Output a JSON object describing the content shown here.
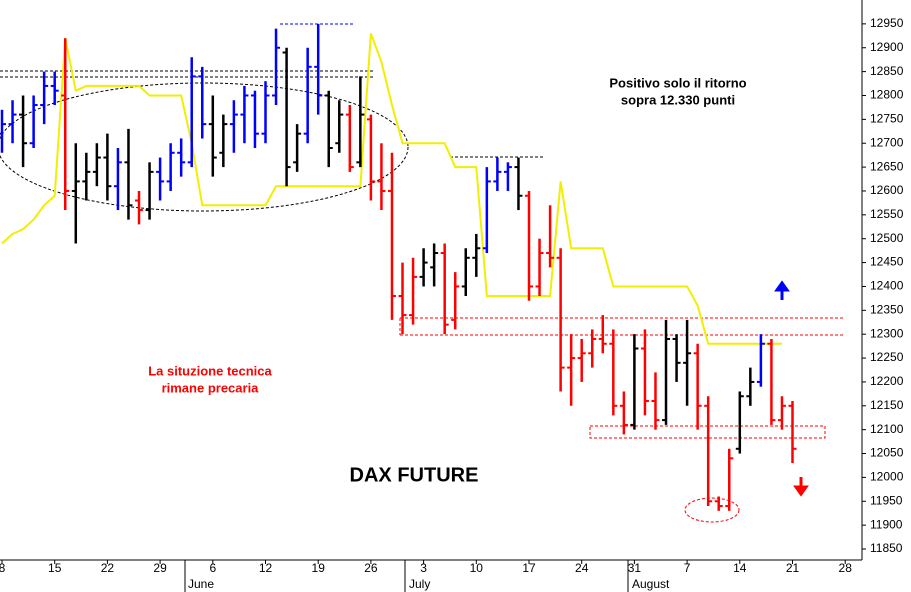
{
  "chart_data": {
    "type": "ohlc",
    "title": "DAX FUTURE",
    "annotations": [
      "Positivo solo il ritorno",
      "sopra 12.330 punti",
      "La situzione tecnica",
      "rimane precaria"
    ],
    "months": [
      "June",
      "July",
      "August"
    ],
    "categories": [
      "8",
      null,
      null,
      null,
      null,
      "15",
      null,
      null,
      null,
      null,
      "22",
      null,
      null,
      null,
      null,
      "29",
      null,
      null,
      null,
      null,
      "6",
      null,
      null,
      null,
      null,
      "12",
      null,
      null,
      null,
      null,
      "19",
      null,
      null,
      null,
      null,
      "26",
      null,
      null,
      null,
      null,
      "3",
      null,
      null,
      null,
      null,
      "10",
      null,
      null,
      null,
      null,
      "17",
      null,
      null,
      null,
      null,
      "24",
      null,
      null,
      null,
      null,
      "31",
      null,
      null,
      null,
      null,
      "7",
      null,
      null,
      null,
      null,
      "14",
      null,
      null,
      null,
      null,
      "21",
      null,
      null,
      null,
      null,
      "28",
      null
    ],
    "open": [
      12720,
      12740,
      12760,
      12700,
      12780,
      12820,
      12800,
      12600,
      12620,
      12640,
      12670,
      12610,
      12660,
      12580,
      12560,
      12640,
      12620,
      12680,
      12660,
      12840,
      12740,
      12680,
      12740,
      12760,
      12800,
      12720,
      12800,
      12890,
      12660,
      12720,
      12860,
      12800,
      12700,
      12760,
      12660,
      12750,
      12620,
      12600,
      12380,
      12340,
      12420,
      12440,
      12470,
      12330,
      12400,
      12460,
      12480,
      12620,
      12640,
      12650,
      12590,
      12400,
      12470,
      12460,
      12230,
      12250,
      12260,
      12290,
      12280,
      12150,
      12110,
      12270,
      12160,
      12120,
      12290,
      12240,
      12260,
      12150,
      11950,
      11940,
      12060,
      12170,
      12200,
      12280,
      12120,
      12150,
      null,
      null,
      null,
      null,
      null,
      null
    ],
    "high": [
      12770,
      12790,
      12800,
      12800,
      12850,
      12850,
      12920,
      12700,
      12680,
      12700,
      12720,
      12690,
      12730,
      12600,
      12660,
      12670,
      12700,
      12710,
      12880,
      12860,
      12800,
      12760,
      12790,
      12820,
      12810,
      12830,
      12940,
      12900,
      12740,
      12900,
      12950,
      12810,
      12790,
      12780,
      12840,
      12760,
      12700,
      12680,
      12450,
      12460,
      12480,
      12490,
      12490,
      12430,
      12480,
      12510,
      12650,
      12670,
      12660,
      12670,
      12600,
      12500,
      12570,
      12480,
      12300,
      12290,
      12310,
      12340,
      12310,
      12180,
      12300,
      12310,
      12220,
      12330,
      12300,
      12330,
      12280,
      12170,
      11960,
      12060,
      12180,
      12230,
      12300,
      12290,
      12170,
      12160,
      null,
      null,
      null,
      null,
      null,
      null
    ],
    "low": [
      12680,
      12700,
      12650,
      12690,
      12740,
      12780,
      12560,
      12490,
      12580,
      12610,
      12580,
      12560,
      12540,
      12530,
      12540,
      12580,
      12600,
      12630,
      12650,
      12710,
      12630,
      12650,
      12680,
      12700,
      12690,
      12700,
      12780,
      12610,
      12640,
      12700,
      12760,
      12650,
      12680,
      12640,
      12650,
      12580,
      12560,
      12330,
      12300,
      12320,
      12400,
      12400,
      12300,
      12310,
      12380,
      12420,
      12470,
      12600,
      12600,
      12560,
      12370,
      12380,
      12440,
      12180,
      12150,
      12200,
      12230,
      12260,
      12130,
      12090,
      12100,
      12130,
      12100,
      12110,
      12200,
      12150,
      12100,
      11940,
      11930,
      11930,
      12050,
      12150,
      12190,
      12110,
      12100,
      12030,
      null,
      null,
      null,
      null,
      null,
      null
    ],
    "close": [
      12740,
      12760,
      12700,
      12780,
      12820,
      12810,
      12600,
      12620,
      12640,
      12670,
      12610,
      12660,
      12570,
      12560,
      12640,
      12620,
      12680,
      12660,
      12840,
      12740,
      12670,
      12740,
      12760,
      12800,
      12720,
      12800,
      12900,
      12650,
      12720,
      12860,
      12800,
      12690,
      12760,
      12650,
      12760,
      12620,
      12600,
      12380,
      12340,
      12420,
      12450,
      12470,
      12320,
      12400,
      12460,
      12480,
      12620,
      12640,
      12650,
      12590,
      12400,
      12470,
      12460,
      12230,
      12250,
      12260,
      12290,
      12280,
      12150,
      12110,
      12270,
      12160,
      12120,
      12290,
      12240,
      12260,
      12150,
      11950,
      11940,
      12040,
      12170,
      12200,
      12280,
      12120,
      12150,
      12060,
      null,
      null,
      null,
      null,
      null,
      null
    ],
    "bar_colors": [
      "#0000ff",
      "#0000ff",
      "#000000",
      "#0000ff",
      "#0000ff",
      "#0000ff",
      "#ff0000",
      "#000000",
      "#000000",
      "#000000",
      "#000000",
      "#0000ff",
      "#000000",
      "#ff0000",
      "#000000",
      "#0000ff",
      "#0000ff",
      "#0000ff",
      "#0000ff",
      "#0000ff",
      "#000000",
      "#000000",
      "#0000ff",
      "#0000ff",
      "#0000ff",
      "#0000ff",
      "#0000ff",
      "#000000",
      "#000000",
      "#0000ff",
      "#0000ff",
      "#000000",
      "#000000",
      "#ff0000",
      "#000000",
      "#ff0000",
      "#ff0000",
      "#ff0000",
      "#ff0000",
      "#ff0000",
      "#000000",
      "#000000",
      "#ff0000",
      "#ff0000",
      "#000000",
      "#000000",
      "#0000ff",
      "#0000ff",
      "#0000ff",
      "#000000",
      "#ff0000",
      "#ff0000",
      "#ff0000",
      "#ff0000",
      "#ff0000",
      "#ff0000",
      "#ff0000",
      "#ff0000",
      "#ff0000",
      "#ff0000",
      "#000000",
      "#ff0000",
      "#ff0000",
      "#000000",
      "#000000",
      "#000000",
      "#ff0000",
      "#ff0000",
      "#ff0000",
      "#ff0000",
      "#000000",
      "#000000",
      "#0000ff",
      "#ff0000",
      "#ff0000",
      "#ff0000",
      null,
      null,
      null,
      null,
      null,
      null
    ],
    "stop_line": {
      "color": "#f2ee00",
      "values": [
        12490,
        12510,
        12520,
        12540,
        12570,
        12590,
        12920,
        12810,
        12820,
        12820,
        12820,
        12820,
        12820,
        12820,
        12800,
        12800,
        12800,
        12800,
        12700,
        12570,
        12570,
        12570,
        12570,
        12570,
        12570,
        12570,
        12610,
        12610,
        12610,
        12610,
        12610,
        12610,
        12610,
        12610,
        12610,
        12930,
        12870,
        12780,
        12700,
        12700,
        12700,
        12700,
        12700,
        12650,
        12650,
        12650,
        12380,
        12380,
        12380,
        12380,
        12380,
        12380,
        12380,
        12620,
        12480,
        12480,
        12480,
        12480,
        12400,
        12400,
        12400,
        12400,
        12400,
        12400,
        12400,
        12400,
        12360,
        12280,
        12280,
        12280,
        12280,
        12280,
        12280,
        12280,
        12280,
        null,
        null,
        null,
        null,
        null,
        null,
        null
      ]
    },
    "ylim": [
      11827,
      13000
    ],
    "yticks": [
      11850,
      11900,
      11950,
      12000,
      12050,
      12100,
      12150,
      12200,
      12250,
      12300,
      12350,
      12400,
      12450,
      12500,
      12550,
      12600,
      12650,
      12700,
      12750,
      12800,
      12850,
      12900,
      12950
    ]
  }
}
